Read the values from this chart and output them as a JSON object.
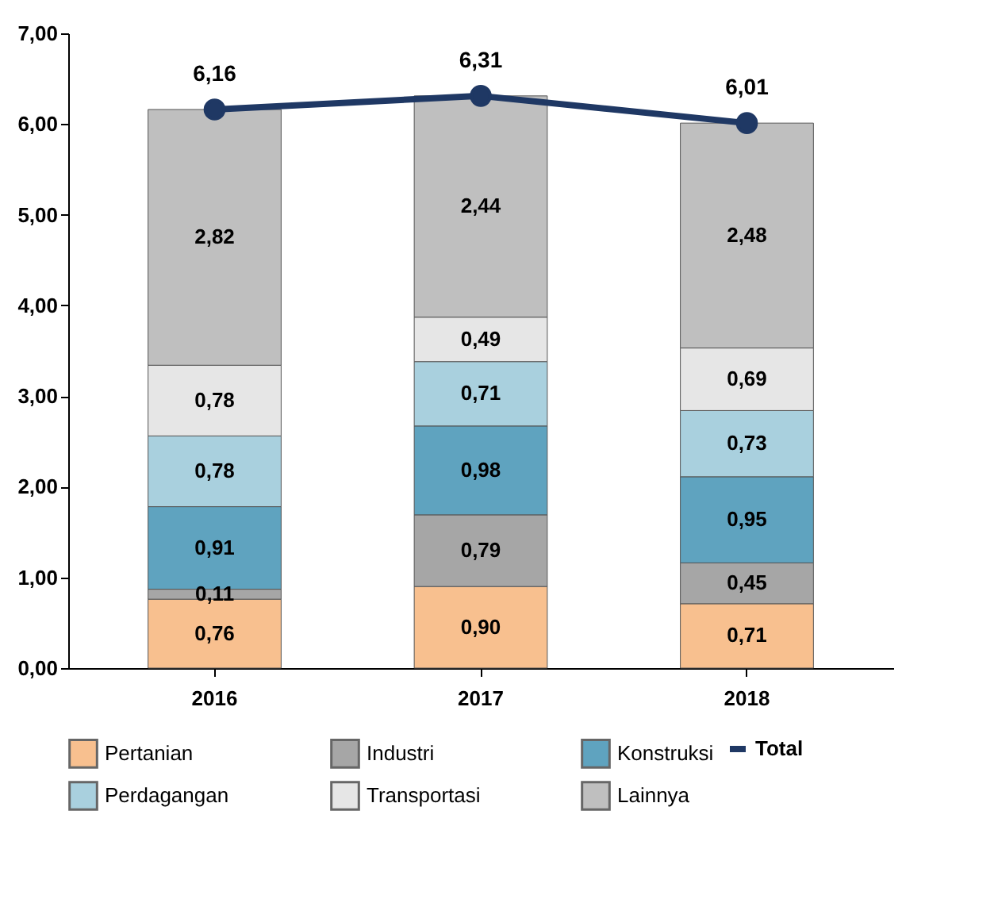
{
  "chart_data": {
    "type": "bar",
    "stacked": true,
    "categories": [
      "2016",
      "2017",
      "2018"
    ],
    "ylim": [
      0,
      7
    ],
    "yticks": [
      {
        "value": 0,
        "label": "0,00"
      },
      {
        "value": 1,
        "label": "1,00"
      },
      {
        "value": 2,
        "label": "2,00"
      },
      {
        "value": 3,
        "label": "3,00"
      },
      {
        "value": 4,
        "label": "4,00"
      },
      {
        "value": 5,
        "label": "5,00"
      },
      {
        "value": 6,
        "label": "6,00"
      },
      {
        "value": 7,
        "label": "7,00"
      }
    ],
    "grid": false,
    "legend": "bottom",
    "series": [
      {
        "name": "Pertanian",
        "color": "#f8c08f",
        "values": [
          0.76,
          0.9,
          0.71
        ],
        "value_labels": [
          "0,76",
          "0,90",
          "0,71"
        ]
      },
      {
        "name": "Industri",
        "color": "#a6a6a6",
        "values": [
          0.11,
          0.79,
          0.45
        ],
        "value_labels": [
          "0,11",
          "0,79",
          "0,45"
        ]
      },
      {
        "name": "Konstruksi",
        "color": "#5fa3bf",
        "values": [
          0.91,
          0.98,
          0.95
        ],
        "value_labels": [
          "0,91",
          "0,98",
          "0,95"
        ]
      },
      {
        "name": "Perdagangan",
        "color": "#a9d0de",
        "values": [
          0.78,
          0.71,
          0.73
        ],
        "value_labels": [
          "0,78",
          "0,71",
          "0,73"
        ]
      },
      {
        "name": "Transportasi",
        "color": "#e6e6e6",
        "values": [
          0.78,
          0.49,
          0.69
        ],
        "value_labels": [
          "0,78",
          "0,49",
          "0,69"
        ]
      },
      {
        "name": "Lainnya",
        "color": "#bfbfbf",
        "values": [
          2.82,
          2.44,
          2.48
        ],
        "value_labels": [
          "2,82",
          "2,44",
          "2,48"
        ]
      },
      {
        "name": "Total",
        "type": "line",
        "color": "#1f3864",
        "marker": "circle",
        "line_style": "solid",
        "values": [
          6.16,
          6.31,
          6.01
        ],
        "value_labels": [
          "6,16",
          "6,31",
          "6,01"
        ]
      }
    ]
  }
}
